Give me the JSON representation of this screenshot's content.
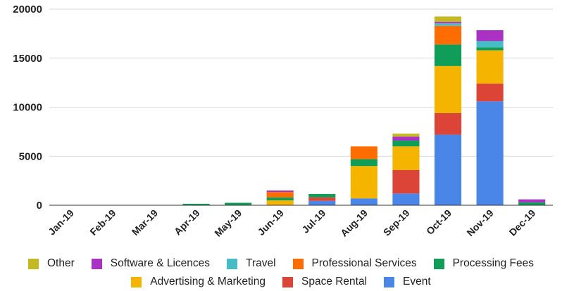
{
  "chart_data": {
    "type": "bar",
    "stacked": true,
    "categories": [
      "Jan-19",
      "Feb-19",
      "Mar-19",
      "Apr-19",
      "May-19",
      "Jun-19",
      "Jul-19",
      "Aug-19",
      "Sep-19",
      "Oct-19",
      "Nov-19",
      "Dec-19"
    ],
    "ylim": [
      0,
      20000
    ],
    "yticks": [
      0,
      5000,
      10000,
      15000,
      20000
    ],
    "grid": true,
    "legend_position": "bottom",
    "series": [
      {
        "name": "Event",
        "color": "#4a86e8",
        "values": [
          0,
          0,
          0,
          0,
          0,
          0,
          450,
          700,
          1200,
          7200,
          10600,
          0
        ]
      },
      {
        "name": "Space Rental",
        "color": "#db4437",
        "values": [
          0,
          0,
          0,
          0,
          0,
          0,
          350,
          0,
          2400,
          2200,
          1800,
          0
        ]
      },
      {
        "name": "Advertising & Marketing",
        "color": "#f4b400",
        "values": [
          0,
          0,
          0,
          0,
          0,
          500,
          0,
          3300,
          2400,
          4800,
          3400,
          0
        ]
      },
      {
        "name": "Processing Fees",
        "color": "#0f9d58",
        "values": [
          0,
          0,
          0,
          150,
          250,
          300,
          350,
          700,
          600,
          2200,
          300,
          300
        ]
      },
      {
        "name": "Professional Services",
        "color": "#ff6d01",
        "values": [
          0,
          0,
          0,
          0,
          0,
          550,
          0,
          1300,
          0,
          1900,
          0,
          0
        ]
      },
      {
        "name": "Travel",
        "color": "#46bdc6",
        "values": [
          0,
          0,
          0,
          0,
          0,
          0,
          0,
          0,
          0,
          250,
          650,
          0
        ]
      },
      {
        "name": "Software & Licences",
        "color": "#ab30c4",
        "values": [
          0,
          0,
          0,
          0,
          0,
          150,
          0,
          0,
          400,
          150,
          1100,
          300
        ]
      },
      {
        "name": "Other",
        "color": "#c2b923",
        "values": [
          0,
          0,
          0,
          0,
          0,
          0,
          0,
          0,
          300,
          550,
          0,
          0
        ]
      }
    ]
  },
  "legend": {
    "row1": [
      {
        "label": "Other",
        "color": "#c2b923"
      },
      {
        "label": "Software & Licences",
        "color": "#ab30c4"
      },
      {
        "label": "Travel",
        "color": "#46bdc6"
      },
      {
        "label": "Professional Services",
        "color": "#ff6d01"
      },
      {
        "label": "Processing Fees",
        "color": "#0f9d58"
      }
    ],
    "row2": [
      {
        "label": "Advertising & Marketing",
        "color": "#f4b400"
      },
      {
        "label": "Space Rental",
        "color": "#db4437"
      },
      {
        "label": "Event",
        "color": "#4a86e8"
      }
    ]
  }
}
